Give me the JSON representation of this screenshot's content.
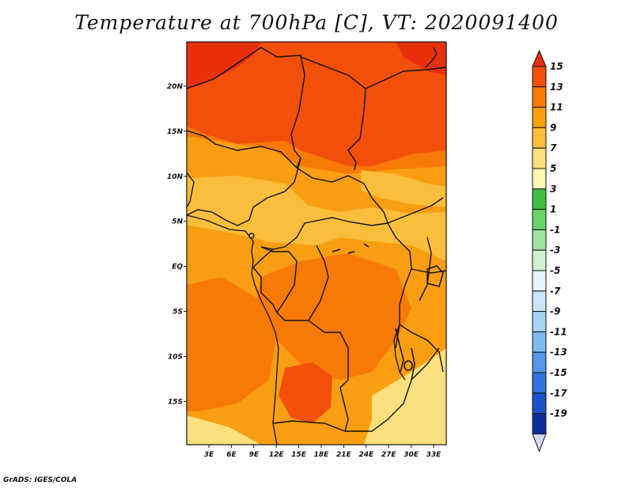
{
  "title": "Temperature at 700hPa [C], VT: 2020091400",
  "credit": "GrADS: IGES/COLA",
  "map": {
    "lat_ticks": [
      "20N",
      "15N",
      "10N",
      "5N",
      "EQ",
      "5S",
      "10S",
      "15S"
    ],
    "lon_ticks": [
      "3E",
      "6E",
      "9E",
      "12E",
      "15E",
      "18E",
      "21E",
      "24E",
      "27E",
      "30E",
      "33E"
    ]
  },
  "colorbar": {
    "labels": [
      "15",
      "13",
      "11",
      "9",
      "7",
      "5",
      "3",
      "1",
      "-1",
      "-3",
      "-5",
      "-7",
      "-9",
      "-11",
      "-13",
      "-15",
      "-17",
      "-19"
    ],
    "colors": [
      "#e8300e",
      "#f2500a",
      "#f77a06",
      "#f99e12",
      "#fbbe3c",
      "#fde07e",
      "#fdf6b4",
      "#3fbf3f",
      "#6ad26a",
      "#9ee39e",
      "#d0f2d0",
      "#e6f4fb",
      "#c8e6f8",
      "#a6d2f4",
      "#7fb8ee",
      "#5498e6",
      "#2f74dc",
      "#1a52c8",
      "#0d2f9a",
      "#070f5a"
    ],
    "low_cap_color": "#d6d6f4",
    "high_cap_color": "#e23012"
  },
  "field_colors": {
    "c13": "#e8300e",
    "c11": "#f2500a",
    "c9": "#f77a06",
    "c7": "#f99e12",
    "c5": "#fbbe3c",
    "c3": "#fde07e"
  }
}
